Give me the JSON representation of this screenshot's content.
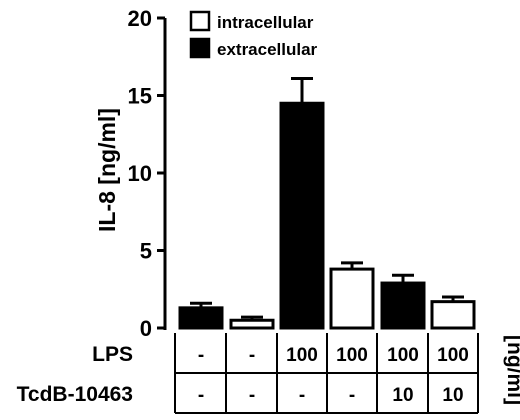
{
  "chart_data": {
    "type": "bar",
    "ylabel": "IL-8 [ng/ml]",
    "ylim": [
      0,
      20
    ],
    "yticks": [
      "0",
      "5",
      "10",
      "15",
      "20"
    ],
    "ytick_values": [
      0,
      5,
      10,
      15,
      20
    ],
    "grid": false,
    "legend_position": "top",
    "legend": [
      {
        "label": "intracellular",
        "fill": "#ffffff"
      },
      {
        "label": "extracellular",
        "fill": "#000000"
      }
    ],
    "bars": [
      {
        "series": "extracellular",
        "value": 1.3,
        "error": 0.3
      },
      {
        "series": "intracellular",
        "value": 0.5,
        "error": 0.2
      },
      {
        "series": "extracellular",
        "value": 14.5,
        "error": 1.6
      },
      {
        "series": "intracellular",
        "value": 3.8,
        "error": 0.4
      },
      {
        "series": "extracellular",
        "value": 2.9,
        "error": 0.5
      },
      {
        "series": "intracellular",
        "value": 1.7,
        "error": 0.3
      }
    ],
    "conditions": {
      "rows": [
        {
          "label": "LPS",
          "values": [
            "-",
            "-",
            "100",
            "100",
            "100",
            "100"
          ]
        },
        {
          "label": "TcdB-10463",
          "values": [
            "-",
            "-",
            "-",
            "-",
            "10",
            "10"
          ]
        }
      ],
      "unit": "[ng/ml]"
    }
  }
}
